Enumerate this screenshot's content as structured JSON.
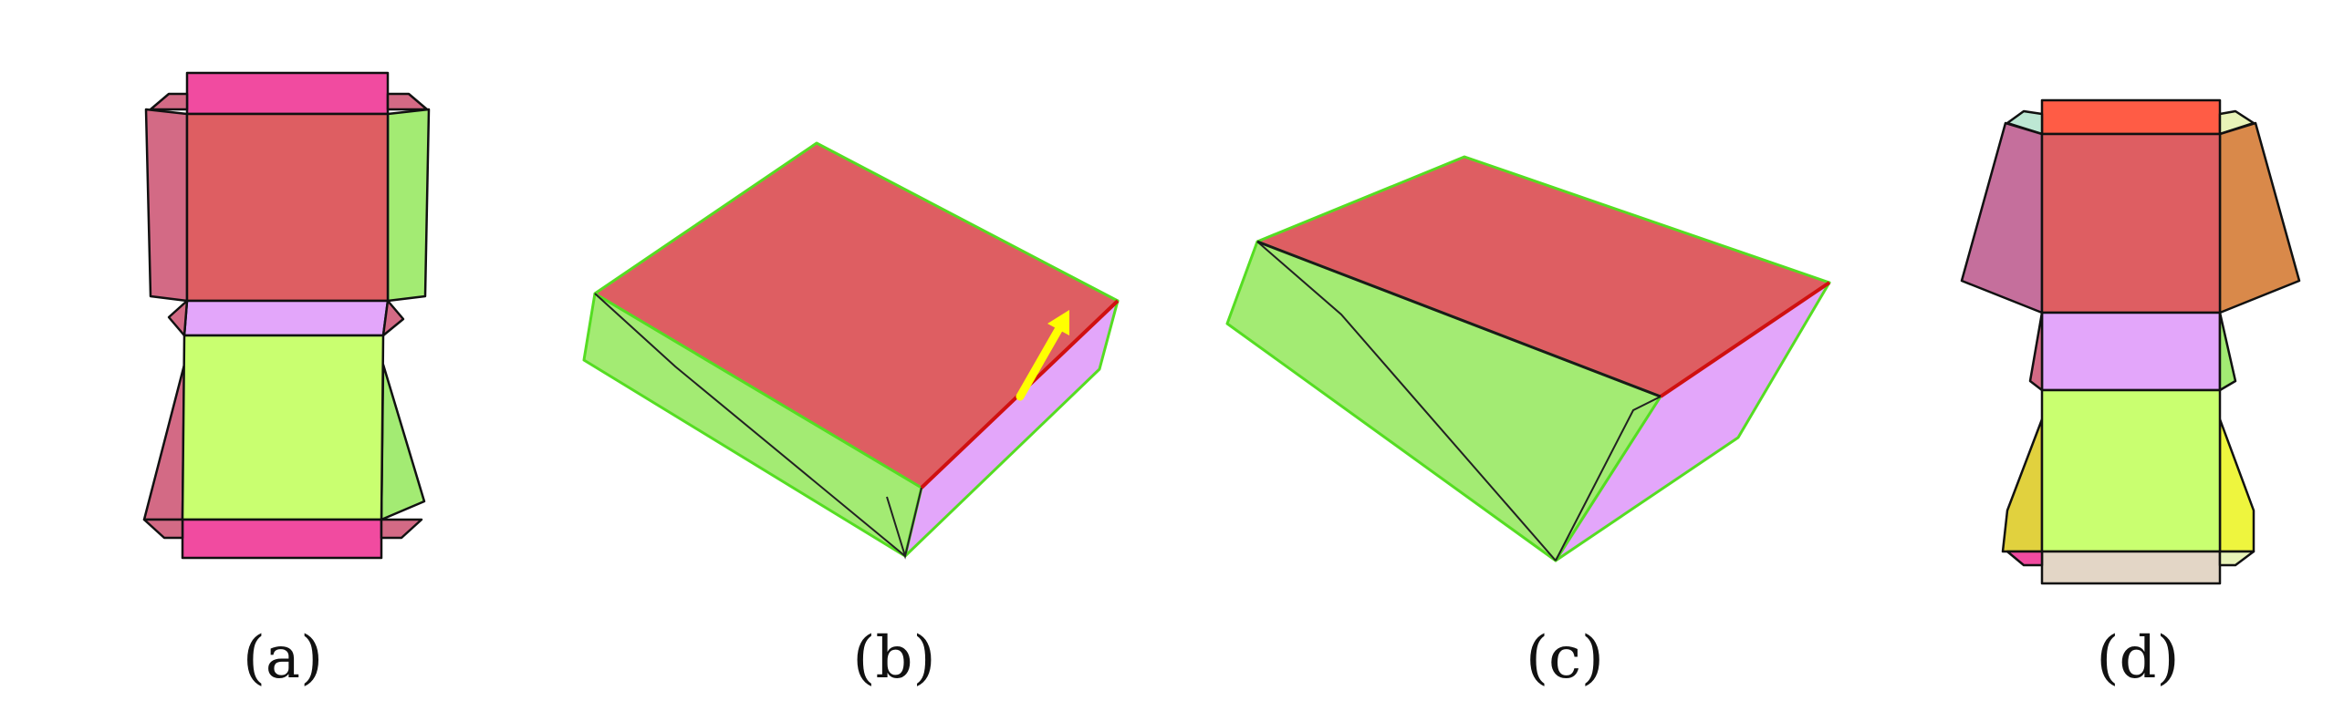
{
  "figure": {
    "panels": [
      {
        "id": "a",
        "caption": "(a)"
      },
      {
        "id": "b",
        "caption": "(b)"
      },
      {
        "id": "c",
        "caption": "(c)"
      },
      {
        "id": "d",
        "caption": "(d)"
      }
    ],
    "colors": {
      "top_red": "#de5e62",
      "magenta": "#f14ba0",
      "mauve": "#d36a85",
      "side_green": "#a3eb73",
      "lime": "#c9ff70",
      "lilac": "#e3a6fa",
      "orange_red": "#ff5c45",
      "plum": "#c56f9c",
      "orange": "#d9894a",
      "olive_yellow": "#e1d13e",
      "yellow": "#eef53e",
      "beige": "#e3d6c6",
      "pale_teal": "#bde8d4",
      "pale_yellow": "#e8f3b8",
      "arrow_yellow": "#ffff00"
    }
  }
}
